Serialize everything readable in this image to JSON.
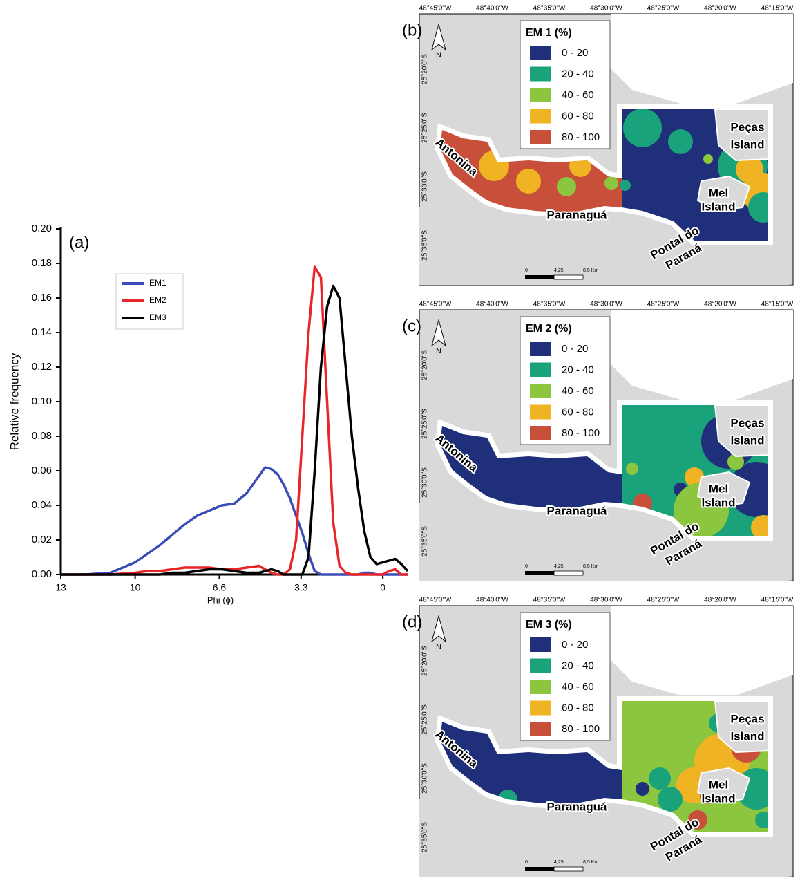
{
  "chart_data": {
    "type": "line",
    "panel_label": "(a)",
    "xlabel": "Phi (ϕ)",
    "ylabel": "Relative frequency",
    "x": [
      13,
      12,
      11,
      10,
      9.5,
      9,
      8.5,
      8,
      7.5,
      7,
      6.5,
      6,
      5.5,
      5,
      4.75,
      4.5,
      4.25,
      4,
      3.75,
      3.5,
      3.25,
      3,
      2.75,
      2.5,
      2.25,
      2,
      1.75,
      1.5,
      1.25,
      1,
      0.75,
      0.5,
      0.25,
      0,
      -0.25,
      -0.5,
      -0.75,
      -1
    ],
    "series": [
      {
        "name": "EM1",
        "color": "#3b4cb8",
        "values": [
          0,
          0,
          0.001,
          0.007,
          0.012,
          0.017,
          0.023,
          0.029,
          0.034,
          0.037,
          0.04,
          0.041,
          0.047,
          0.057,
          0.062,
          0.061,
          0.058,
          0.052,
          0.044,
          0.034,
          0.024,
          0.012,
          0.002,
          0,
          0,
          0,
          0,
          0,
          0,
          0,
          0.001,
          0.001,
          0,
          0,
          0,
          0,
          0,
          0
        ]
      },
      {
        "name": "EM2",
        "color": "#e8262a",
        "values": [
          0,
          0,
          0,
          0.001,
          0.002,
          0.002,
          0.003,
          0.004,
          0.004,
          0.004,
          0.003,
          0.003,
          0.004,
          0.005,
          0.003,
          0.001,
          0,
          0,
          0.003,
          0.02,
          0.08,
          0.14,
          0.178,
          0.172,
          0.1,
          0.03,
          0.005,
          0.001,
          0,
          0,
          0,
          0,
          0,
          0,
          0.002,
          0.003,
          0,
          0
        ]
      },
      {
        "name": "EM3",
        "color": "#000000",
        "values": [
          0,
          0,
          0,
          0,
          0,
          0,
          0.001,
          0.001,
          0.002,
          0.003,
          0.003,
          0.002,
          0.001,
          0.001,
          0.002,
          0.003,
          0.002,
          0,
          0,
          0,
          0,
          0.01,
          0.06,
          0.12,
          0.155,
          0.167,
          0.16,
          0.12,
          0.08,
          0.05,
          0.025,
          0.01,
          0.006,
          0.007,
          0.008,
          0.009,
          0.006,
          0.002
        ]
      }
    ],
    "xlim": [
      13,
      -1
    ],
    "xticks": [
      13,
      10,
      6.6,
      3.3,
      0
    ],
    "ylim": [
      0,
      0.2
    ],
    "yticks": [
      {
        "value": 0,
        "label": "0.00"
      },
      {
        "value": 0.02,
        "label": "0.02"
      },
      {
        "value": 0.04,
        "label": "0.04"
      },
      {
        "value": 0.06,
        "label": "0.06"
      },
      {
        "value": 0.08,
        "label": "0.08"
      },
      {
        "value": 0.1,
        "label": "0.10"
      },
      {
        "value": 0.12,
        "label": "0.12"
      },
      {
        "value": 0.14,
        "label": "0.14"
      },
      {
        "value": 0.16,
        "label": "0.16"
      },
      {
        "value": 0.18,
        "label": "0.18"
      },
      {
        "value": 0.2,
        "label": "0.20"
      }
    ],
    "grid": false,
    "legend": "upper-left"
  },
  "maps": {
    "panels": [
      {
        "label": "(b)",
        "legend_title": "EM 1 (%)"
      },
      {
        "label": "(c)",
        "legend_title": "EM 2 (%)"
      },
      {
        "label": "(d)",
        "legend_title": "EM 3 (%)"
      }
    ],
    "longitudes": [
      "48°45'0\"W",
      "48°40'0\"W",
      "48°35'0\"W",
      "48°30'0\"W",
      "48°25'0\"W",
      "48°20'0\"W",
      "48°15'0\"W"
    ],
    "latitudes": [
      "25°20'0\"S",
      "25°25'0\"S",
      "25°30'0\"S",
      "25°35'0\"S"
    ],
    "classes": [
      {
        "label": "0 - 20",
        "color": "#1f2f7a"
      },
      {
        "label": "20 - 40",
        "color": "#1aa37a"
      },
      {
        "label": "40 - 60",
        "color": "#8cc63f"
      },
      {
        "label": "60 - 80",
        "color": "#f0b323"
      },
      {
        "label": "80 - 100",
        "color": "#c8503a"
      }
    ],
    "places": {
      "antonina": "Antonina",
      "paranagua": "Paranaguá",
      "pontal": [
        "Pontal do",
        "Paraná"
      ],
      "pecas": [
        "Peças",
        "Island"
      ],
      "mel": [
        "Mel",
        "Island"
      ]
    },
    "north": "N",
    "scale": [
      "0",
      "4,25",
      "8,5 Km"
    ]
  }
}
